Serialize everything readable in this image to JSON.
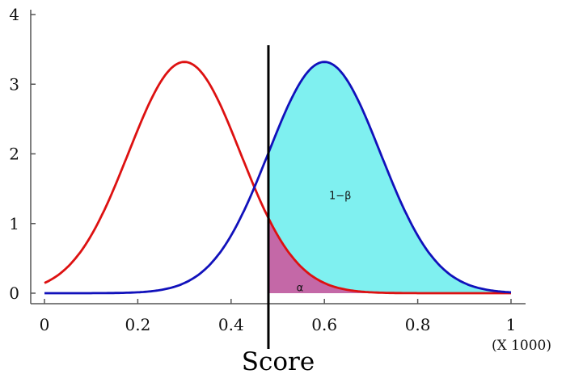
{
  "chart_data": {
    "type": "line",
    "title": "",
    "xlabel": "Score",
    "ylabel": "",
    "x_multiplier_label": "(X 1000)",
    "xlim": [
      0,
      1
    ],
    "ylim": [
      0,
      4
    ],
    "x_ticks": [
      0,
      0.2,
      0.4,
      0.6,
      0.8,
      1
    ],
    "x_tick_labels": [
      "0",
      "0.2",
      "0.4",
      "0.6",
      "0.8",
      "1"
    ],
    "y_ticks": [
      0,
      1,
      2,
      3,
      4
    ],
    "y_tick_labels": [
      "0",
      "1",
      "2",
      "3",
      "4"
    ],
    "grid": false,
    "threshold_x": 0.48,
    "series": [
      {
        "color": "#dd1111",
        "peak_x": 0.3,
        "peak_y": 3.32,
        "sd": 0.12
      },
      {
        "color": "#1111bb",
        "peak_x": 0.6,
        "peak_y": 3.32,
        "sd": 0.12
      }
    ],
    "shaded_regions": [
      {
        "color": "#7ff0f0",
        "under": "series-2",
        "from_x": 0.48,
        "to_x": 1
      },
      {
        "color": "#d0509a",
        "under": "series-1",
        "from_x": 0.48,
        "to_x": 1
      }
    ],
    "annotations": [
      {
        "text": "1−β",
        "x": 0.61,
        "y": 1.35
      },
      {
        "text": "α",
        "x": 0.54,
        "y": 0.03
      }
    ]
  }
}
